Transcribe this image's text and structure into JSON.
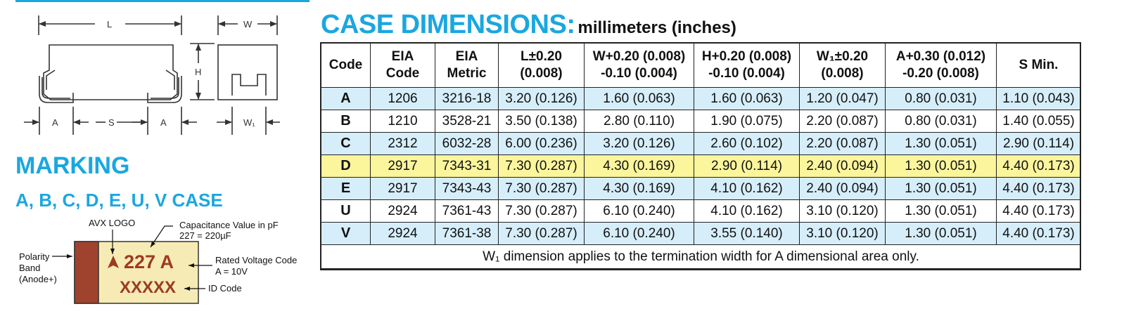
{
  "title": {
    "main": "CASE DIMENSIONS:",
    "unit": "millimeters (inches)"
  },
  "marking": {
    "title": "MARKING",
    "subtitle": "A, B, C, D, E, U, V CASE"
  },
  "diagram_labels": {
    "L": "L",
    "W": "W",
    "H": "H",
    "A1": "A",
    "S": "S",
    "A2": "A",
    "W1": "W₁"
  },
  "marking_diagram": {
    "avx_logo": "AVX LOGO",
    "cap_label_1": "Capacitance Value in pF",
    "cap_label_2": "227 = 220µF",
    "polarity_1": "Polarity",
    "polarity_2": "Band",
    "polarity_3": "(Anode+)",
    "voltage_label_1": "Rated Voltage Code",
    "voltage_label_2": "A = 10V",
    "id_label": "ID Code",
    "code_text": "227 A",
    "id_text": "XXXXX",
    "colors": {
      "band": "#a0432e",
      "body": "#f7ebb5",
      "text": "#9c3b23"
    }
  },
  "table": {
    "headers": [
      [
        "Code"
      ],
      [
        "EIA",
        "Code"
      ],
      [
        "EIA",
        "Metric"
      ],
      [
        "L±0.20",
        "(0.008)"
      ],
      [
        "W+0.20 (0.008)",
        "-0.10 (0.004)"
      ],
      [
        "H+0.20 (0.008)",
        "-0.10 (0.004)"
      ],
      [
        "W₁±0.20",
        "(0.008)"
      ],
      [
        "A+0.30 (0.012)",
        "-0.20 (0.008)"
      ],
      [
        "S Min."
      ]
    ],
    "rows": [
      [
        "A",
        "1206",
        "3216-18",
        "3.20 (0.126)",
        "1.60 (0.063)",
        "1.60 (0.063)",
        "1.20 (0.047)",
        "0.80 (0.031)",
        "1.10 (0.043)"
      ],
      [
        "B",
        "1210",
        "3528-21",
        "3.50 (0.138)",
        "2.80 (0.110)",
        "1.90 (0.075)",
        "2.20 (0.087)",
        "0.80 (0.031)",
        "1.40 (0.055)"
      ],
      [
        "C",
        "2312",
        "6032-28",
        "6.00 (0.236)",
        "3.20 (0.126)",
        "2.60 (0.102)",
        "2.20 (0.087)",
        "1.30 (0.051)",
        "2.90 (0.114)"
      ],
      [
        "D",
        "2917",
        "7343-31",
        "7.30 (0.287)",
        "4.30 (0.169)",
        "2.90 (0.114)",
        "2.40 (0.094)",
        "1.30 (0.051)",
        "4.40 (0.173)"
      ],
      [
        "E",
        "2917",
        "7343-43",
        "7.30 (0.287)",
        "4.30 (0.169)",
        "4.10 (0.162)",
        "2.40 (0.094)",
        "1.30 (0.051)",
        "4.40 (0.173)"
      ],
      [
        "U",
        "2924",
        "7361-43",
        "7.30 (0.287)",
        "6.10 (0.240)",
        "4.10 (0.162)",
        "3.10 (0.120)",
        "1.30 (0.051)",
        "4.40 (0.173)"
      ],
      [
        "V",
        "2924",
        "7361-38",
        "7.30 (0.287)",
        "6.10 (0.240)",
        "3.55 (0.140)",
        "3.10 (0.120)",
        "1.30 (0.051)",
        "4.40 (0.173)"
      ]
    ],
    "highlight_row": "D",
    "footnote": "W₁ dimension applies to the termination width for A dimensional area only.",
    "colors": {
      "blue_row": "#d6eefa",
      "highlight": "#fbf59c",
      "heading": "#1aa7e0"
    }
  }
}
